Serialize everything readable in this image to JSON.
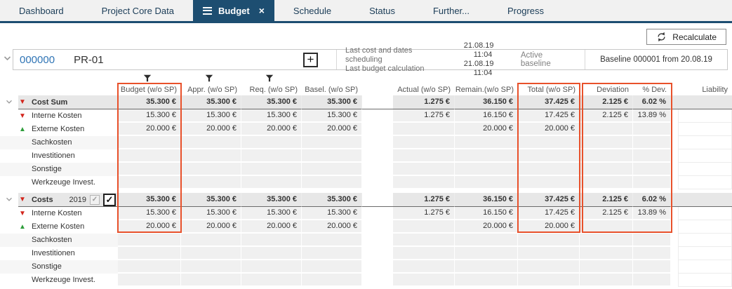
{
  "tabs": {
    "items": [
      {
        "label": "Dashboard",
        "active": false
      },
      {
        "label": "Project Core Data",
        "active": false
      },
      {
        "label": "Budget",
        "active": true,
        "icons": [
          "menu-icon",
          "close-icon"
        ]
      },
      {
        "label": "Schedule",
        "active": false
      },
      {
        "label": "Status",
        "active": false
      },
      {
        "label": "Further...",
        "active": false
      },
      {
        "label": "Progress",
        "active": false
      }
    ]
  },
  "toolbar": {
    "recalculate": "Recalculate"
  },
  "project": {
    "number": "000000",
    "name": "PR-01",
    "schedule_rows": [
      {
        "label": "Last cost and dates scheduling",
        "date": "21.08.19",
        "time": "11:04"
      },
      {
        "label": "Last budget calculation",
        "date": "21.08.19",
        "time": "11:04"
      }
    ],
    "active_baseline_label": "Active baseline",
    "baseline": "Baseline 000001 from 20.08.19"
  },
  "table": {
    "columns": [
      {
        "key": "budget",
        "label": "Budget (w/o SP)",
        "filter": true
      },
      {
        "key": "appr",
        "label": "Appr. (w/o SP)",
        "filter": true
      },
      {
        "key": "req",
        "label": "Req. (w/o SP)",
        "filter": true
      },
      {
        "key": "basel",
        "label": "Basel. (w/o SP)",
        "filter": false
      },
      {
        "key": "actual",
        "label": "Actual (w/o SP)",
        "filter": false
      },
      {
        "key": "remain",
        "label": "Remain.(w/o SP)",
        "filter": false
      },
      {
        "key": "total",
        "label": "Total (w/o SP)",
        "filter": false
      },
      {
        "key": "deviation",
        "label": "Deviation",
        "filter": false
      },
      {
        "key": "pdev",
        "label": "% Dev.",
        "filter": false
      },
      {
        "key": "liability",
        "label": "Liability",
        "filter": false
      }
    ],
    "groups": [
      {
        "header": {
          "label": "Cost Sum",
          "icon": "triangle-down-red-icon",
          "expander": "chevron-down-icon",
          "values": {
            "budget": "35.300 €",
            "appr": "35.300 €",
            "req": "35.300 €",
            "basel": "35.300 €",
            "actual": "1.275 €",
            "remain": "36.150 €",
            "total": "37.425 €",
            "deviation": "2.125 €",
            "pdev": "6.02 %",
            "liability": ""
          }
        },
        "rows": [
          {
            "label": "Interne Kosten",
            "icon": "triangle-down-red-icon",
            "values": {
              "budget": "15.300 €",
              "appr": "15.300 €",
              "req": "15.300 €",
              "basel": "15.300 €",
              "actual": "1.275 €",
              "remain": "16.150 €",
              "total": "17.425 €",
              "deviation": "2.125 €",
              "pdev": "13.89 %",
              "liability": ""
            }
          },
          {
            "label": "Externe Kosten",
            "icon": "triangle-up-green-icon",
            "values": {
              "budget": "20.000 €",
              "appr": "20.000 €",
              "req": "20.000 €",
              "basel": "20.000 €",
              "actual": "",
              "remain": "20.000 €",
              "total": "20.000 €",
              "deviation": "",
              "pdev": "",
              "liability": ""
            }
          },
          {
            "label": "Sachkosten",
            "icon": null,
            "values": {}
          },
          {
            "label": "Investitionen",
            "icon": null,
            "values": {}
          },
          {
            "label": "Sonstige",
            "icon": null,
            "values": {}
          },
          {
            "label": "Werkzeuge Invest.",
            "icon": null,
            "values": {}
          }
        ]
      },
      {
        "header": {
          "label": "Costs",
          "year": "2019",
          "icon": "triangle-down-red-icon",
          "expander": "chevron-down-icon",
          "checkbox_readonly_checked": true,
          "checkbox_checked": true,
          "values": {
            "budget": "35.300 €",
            "appr": "35.300 €",
            "req": "35.300 €",
            "basel": "35.300 €",
            "actual": "1.275 €",
            "remain": "36.150 €",
            "total": "37.425 €",
            "deviation": "2.125 €",
            "pdev": "6.02 %",
            "liability": ""
          }
        },
        "rows": [
          {
            "label": "Interne Kosten",
            "icon": "triangle-down-red-icon",
            "values": {
              "budget": "15.300 €",
              "appr": "15.300 €",
              "req": "15.300 €",
              "basel": "15.300 €",
              "actual": "1.275 €",
              "remain": "16.150 €",
              "total": "17.425 €",
              "deviation": "2.125 €",
              "pdev": "13.89 %",
              "liability": ""
            }
          },
          {
            "label": "Externe Kosten",
            "icon": "triangle-up-green-icon",
            "values": {
              "budget": "20.000 €",
              "appr": "20.000 €",
              "req": "20.000 €",
              "basel": "20.000 €",
              "actual": "",
              "remain": "20.000 €",
              "total": "20.000 €",
              "deviation": "",
              "pdev": "",
              "liability": ""
            }
          },
          {
            "label": "Sachkosten",
            "icon": null,
            "values": {}
          },
          {
            "label": "Investitionen",
            "icon": null,
            "values": {}
          },
          {
            "label": "Sonstige",
            "icon": null,
            "values": {}
          },
          {
            "label": "Werkzeuge Invest.",
            "icon": null,
            "values": {}
          }
        ]
      }
    ]
  },
  "colors": {
    "highlight_orange": "#e8512b",
    "tab_active": "#1d4e71",
    "project_number_blue": "#2f74b5",
    "triangle_red": "#d2251c",
    "triangle_green": "#2f9e3c"
  }
}
